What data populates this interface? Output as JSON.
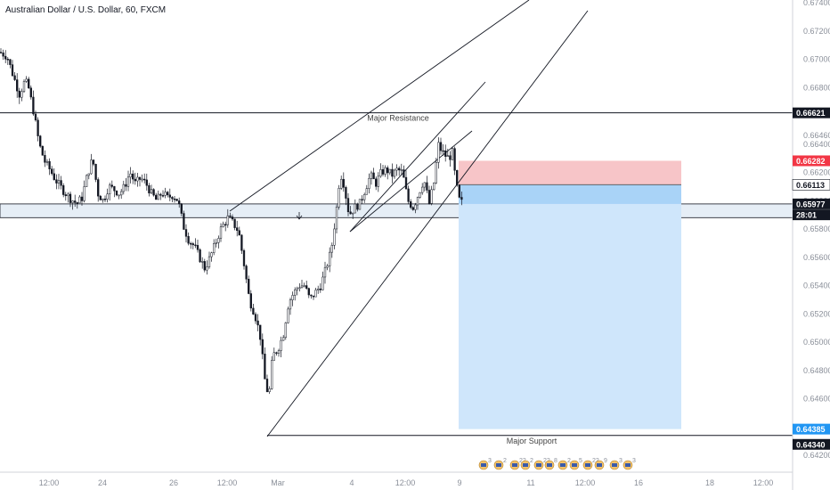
{
  "chart_title": "Australian Dollar / U.S. Dollar, 60, FXCM",
  "chart_data": {
    "type": "candlestick",
    "symbol": "AUDUSD",
    "timeframe": "60",
    "source": "FXCM",
    "title": "Australian Dollar / U.S. Dollar, 60, FXCM",
    "ylim": [
      0.6425,
      0.674
    ],
    "y_ticks": [
      "0.67400",
      "0.67200",
      "0.67000",
      "0.66800",
      "0.66460",
      "0.66400",
      "0.66200",
      "0.66000",
      "0.65800",
      "0.65600",
      "0.65400",
      "0.65200",
      "0.65000",
      "0.64800",
      "0.64600",
      "0.64200"
    ],
    "x_ticks": [
      "12:00",
      "24",
      "26",
      "12:00",
      "Mar",
      "4",
      "12:00",
      "9",
      "11",
      "12:00",
      "16",
      "18",
      "12:00"
    ],
    "price_path": [
      [
        0,
        0.6705
      ],
      [
        8,
        0.6702
      ],
      [
        14,
        0.669
      ],
      [
        22,
        0.6675
      ],
      [
        28,
        0.6685
      ],
      [
        32,
        0.668
      ],
      [
        38,
        0.6662
      ],
      [
        44,
        0.664
      ],
      [
        50,
        0.6628
      ],
      [
        56,
        0.6622
      ],
      [
        62,
        0.6615
      ],
      [
        70,
        0.6608
      ],
      [
        78,
        0.6602
      ],
      [
        86,
        0.6598
      ],
      [
        92,
        0.6602
      ],
      [
        98,
        0.6618
      ],
      [
        104,
        0.663
      ],
      [
        110,
        0.6605
      ],
      [
        116,
        0.66
      ],
      [
        122,
        0.661
      ],
      [
        128,
        0.6608
      ],
      [
        134,
        0.6605
      ],
      [
        140,
        0.661
      ],
      [
        146,
        0.662
      ],
      [
        152,
        0.6612
      ],
      [
        158,
        0.6616
      ],
      [
        164,
        0.6612
      ],
      [
        170,
        0.6605
      ],
      [
        176,
        0.66
      ],
      [
        182,
        0.6606
      ],
      [
        188,
        0.6602
      ],
      [
        194,
        0.6604
      ],
      [
        200,
        0.66
      ],
      [
        206,
        0.6582
      ],
      [
        212,
        0.6572
      ],
      [
        218,
        0.6568
      ],
      [
        224,
        0.656
      ],
      [
        230,
        0.6552
      ],
      [
        236,
        0.656
      ],
      [
        242,
        0.657
      ],
      [
        248,
        0.658
      ],
      [
        256,
        0.6588
      ],
      [
        262,
        0.6584
      ],
      [
        268,
        0.6578
      ],
      [
        274,
        0.6555
      ],
      [
        280,
        0.653
      ],
      [
        286,
        0.652
      ],
      [
        292,
        0.6505
      ],
      [
        298,
        0.647
      ],
      [
        302,
        0.6462
      ],
      [
        306,
        0.649
      ],
      [
        312,
        0.6495
      ],
      [
        318,
        0.6505
      ],
      [
        324,
        0.6528
      ],
      [
        330,
        0.6535
      ],
      [
        336,
        0.654
      ],
      [
        342,
        0.654
      ],
      [
        348,
        0.653
      ],
      [
        354,
        0.6535
      ],
      [
        360,
        0.654
      ],
      [
        366,
        0.6552
      ],
      [
        372,
        0.6565
      ],
      [
        378,
        0.6595
      ],
      [
        382,
        0.662
      ],
      [
        386,
        0.6612
      ],
      [
        392,
        0.659
      ],
      [
        398,
        0.6595
      ],
      [
        404,
        0.6598
      ],
      [
        410,
        0.6608
      ],
      [
        416,
        0.6618
      ],
      [
        422,
        0.6612
      ],
      [
        428,
        0.662
      ],
      [
        434,
        0.6622
      ],
      [
        440,
        0.6618
      ],
      [
        446,
        0.6622
      ],
      [
        452,
        0.662
      ],
      [
        458,
        0.66
      ],
      [
        464,
        0.6595
      ],
      [
        470,
        0.6605
      ],
      [
        476,
        0.6615
      ],
      [
        482,
        0.6598
      ],
      [
        488,
        0.6615
      ],
      [
        492,
        0.664
      ],
      [
        496,
        0.6635
      ],
      [
        500,
        0.6632
      ],
      [
        504,
        0.663
      ],
      [
        508,
        0.6634
      ],
      [
        512,
        0.6612
      ],
      [
        516,
        0.66
      ],
      [
        520,
        0.6598
      ]
    ],
    "levels": [
      {
        "label": "Major Resistance",
        "price": 0.66621
      },
      {
        "label": "Major Support",
        "price": 0.6434
      }
    ],
    "support_zone": [
      0.6588,
      0.65977
    ],
    "position": {
      "entry": 0.66113,
      "stop": 0.66282,
      "target": 0.64385,
      "current": 0.65977,
      "time_left": "28:01"
    },
    "price_tags": [
      {
        "value": "0.66621",
        "kind": "resistance"
      },
      {
        "value": "0.66282",
        "kind": "stop"
      },
      {
        "value": "0.66113",
        "kind": "entry"
      },
      {
        "value": "0.65977",
        "kind": "current"
      },
      {
        "value": "28:01",
        "kind": "timer"
      },
      {
        "value": "0.64385",
        "kind": "target"
      },
      {
        "value": "0.64340",
        "kind": "support"
      }
    ],
    "event_flags": [
      {
        "count": "3"
      },
      {
        "count": "2"
      },
      {
        "count": "22"
      },
      {
        "count": "2"
      },
      {
        "count": "22"
      },
      {
        "count": "8"
      },
      {
        "count": "2"
      },
      {
        "count": "5"
      },
      {
        "count": "22"
      },
      {
        "count": "9"
      },
      {
        "count": "3"
      },
      {
        "count": "3"
      }
    ],
    "colors": {
      "candle": "#131722",
      "stop_zone": "#f7c5c8",
      "target_zone": "#cfe6fb",
      "entry_zone": "#a9d3f7",
      "tag_dark": "#131722",
      "tag_red": "#f23645",
      "tag_blue": "#2196f3",
      "support_band": "#e6eef6"
    }
  }
}
